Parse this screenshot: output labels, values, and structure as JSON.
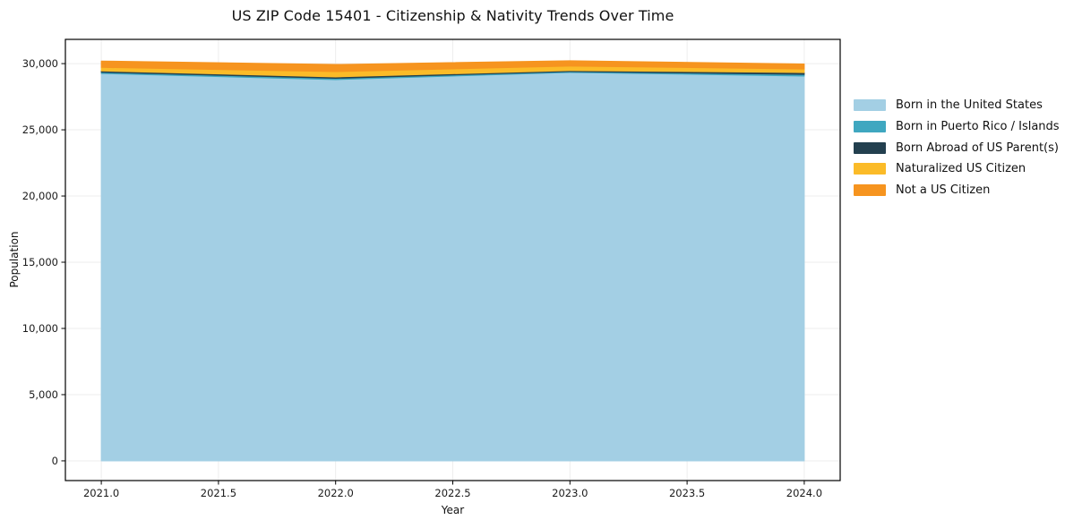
{
  "title": "US ZIP Code 15401 - Citizenship & Nativity Trends Over Time",
  "chart_data": {
    "type": "area",
    "stacked": true,
    "title": "US ZIP Code 15401 - Citizenship & Nativity Trends Over Time",
    "xlabel": "Year",
    "ylabel": "Population",
    "x": [
      2021,
      2022,
      2023,
      2024
    ],
    "series": [
      {
        "name": "Born in the United States",
        "color": "#A3CFE4",
        "values": [
          29250,
          28790,
          29330,
          29060
        ]
      },
      {
        "name": "Born in Puerto Rico / Islands",
        "color": "#3FA7C0",
        "values": [
          95,
          100,
          70,
          125
        ]
      },
      {
        "name": "Born Abroad of US Parent(s)",
        "color": "#23404F",
        "values": [
          100,
          105,
          75,
          140
        ]
      },
      {
        "name": "Naturalized US Citizen",
        "color": "#FBBB28",
        "values": [
          270,
          400,
          340,
          270
        ]
      },
      {
        "name": "Not a US Citizen",
        "color": "#F6941F",
        "values": [
          480,
          540,
          400,
          375
        ]
      }
    ],
    "totals": [
      30195,
      29935,
      30215,
      29970
    ],
    "xlim": [
      2020.8467,
      2024.1533
    ],
    "ylim": [
      -1490,
      31830
    ],
    "xticks": {
      "values": [
        2021.0,
        2021.5,
        2022.0,
        2022.5,
        2023.0,
        2023.5,
        2024.0
      ],
      "labels": [
        "2021.0",
        "2021.5",
        "2022.0",
        "2022.5",
        "2023.0",
        "2023.5",
        "2024.0"
      ]
    },
    "yticks": {
      "values": [
        0,
        5000,
        10000,
        15000,
        20000,
        25000,
        30000
      ],
      "labels": [
        "0",
        "5,000",
        "10,000",
        "15,000",
        "20,000",
        "25,000",
        "30,000"
      ]
    },
    "grid": true,
    "legend_position": "right-outside"
  }
}
